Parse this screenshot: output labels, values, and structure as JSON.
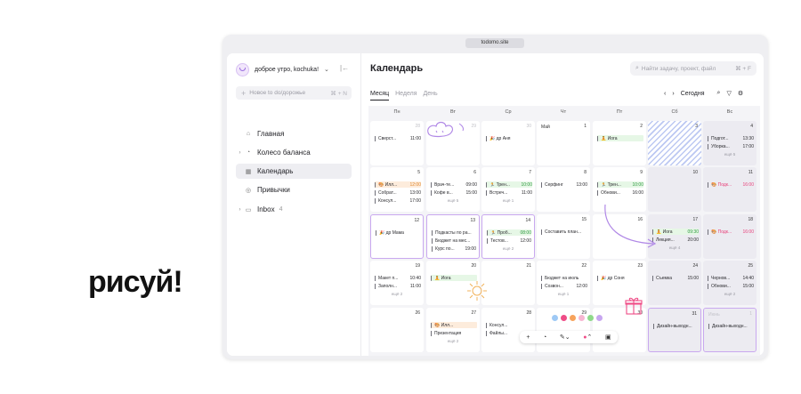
{
  "slogan": "рисуй!",
  "browser": {
    "url": "todomo.site"
  },
  "sidebar": {
    "greeting": "доброе утро, kochuka!",
    "new_task_placeholder": "Новое to do/дорожье",
    "new_task_shortcut": "⌘ + N",
    "items": [
      {
        "label": "Главная",
        "icon": "home-icon"
      },
      {
        "label": "Колесо баланса",
        "icon": "wheel-icon"
      },
      {
        "label": "Календарь",
        "icon": "calendar-icon",
        "active": true
      },
      {
        "label": "Привычки",
        "icon": "habits-icon"
      },
      {
        "label": "Inbox",
        "icon": "inbox-icon",
        "count": "4"
      }
    ]
  },
  "header": {
    "title": "Календарь",
    "search_placeholder": "Найти задачу, проект, файл",
    "search_shortcut": "⌘ + F",
    "views": [
      "Месяц",
      "Неделя",
      "День"
    ],
    "today": "Сегодня"
  },
  "weekdays": [
    "Пн",
    "Вт",
    "Ср",
    "Чт",
    "Пт",
    "Сб",
    "Вс"
  ],
  "weeks": [
    [
      {
        "day": "28",
        "dim": true,
        "events": [
          {
            "t": "Сверст...",
            "h": "11:00"
          }
        ]
      },
      {
        "day": "29",
        "dim": true,
        "events": []
      },
      {
        "day": "30",
        "dim": true,
        "events": [
          {
            "t": "🎉 др Аня",
            "h": ""
          }
        ]
      },
      {
        "day": "1",
        "month": "Май",
        "events": []
      },
      {
        "day": "2",
        "events": [
          {
            "t": "🧘 Йога",
            "h": "",
            "c": "green"
          }
        ]
      },
      {
        "day": "3",
        "hatch": true,
        "events": []
      },
      {
        "day": "4",
        "off": true,
        "events": [
          {
            "t": "Подгот...",
            "h": "13:30"
          },
          {
            "t": "Уборка...",
            "h": "17:00"
          }
        ],
        "more": "ещё 5"
      }
    ],
    [
      {
        "day": "5",
        "events": [
          {
            "t": "🎨 Илл...",
            "h": "12:00",
            "c": "orange"
          },
          {
            "t": "Собрат...",
            "h": "13:00"
          },
          {
            "t": "Консул...",
            "h": "17:00"
          }
        ]
      },
      {
        "day": "6",
        "events": [
          {
            "t": "Врач-те...",
            "h": "09:00"
          },
          {
            "t": "Кофе в...",
            "h": "15:00"
          }
        ],
        "more": "ещё 5"
      },
      {
        "day": "7",
        "events": [
          {
            "t": "🏃 Трен...",
            "h": "10:00",
            "c": "green"
          },
          {
            "t": "Встреч...",
            "h": "11:00"
          }
        ],
        "more": "ещё 1"
      },
      {
        "day": "8",
        "events": [
          {
            "t": "Серфинг",
            "h": "13:00"
          }
        ]
      },
      {
        "day": "9",
        "events": [
          {
            "t": "🏃 Трен...",
            "h": "10:00",
            "c": "green"
          },
          {
            "t": "Обнови...",
            "h": "16:00"
          }
        ]
      },
      {
        "day": "10",
        "off": true,
        "events": []
      },
      {
        "day": "11",
        "off": true,
        "events": [
          {
            "t": "🎨 Подк...",
            "h": "16:00",
            "c": "pink"
          }
        ]
      }
    ],
    [
      {
        "day": "12",
        "sel": true,
        "events": [
          {
            "t": "🎉 др Мама",
            "h": ""
          }
        ]
      },
      {
        "day": "13",
        "sel": true,
        "events": [
          {
            "t": "Подкасты по ра...",
            "h": ""
          },
          {
            "t": "Бюджет на мес...",
            "h": ""
          },
          {
            "t": "Курс по...",
            "h": "19:00"
          }
        ]
      },
      {
        "day": "14",
        "sel": true,
        "events": [
          {
            "t": "🏃 Проб...",
            "h": "08:00",
            "c": "green"
          },
          {
            "t": "Тестов...",
            "h": "12:00"
          }
        ],
        "more": "ещё 2"
      },
      {
        "day": "15",
        "events": [
          {
            "t": "Составить план...",
            "h": ""
          }
        ]
      },
      {
        "day": "16",
        "events": []
      },
      {
        "day": "17",
        "off": true,
        "events": [
          {
            "t": "🧘 Йога",
            "h": "09:30",
            "c": "green"
          },
          {
            "t": "Лекция...",
            "h": "20:00"
          }
        ],
        "more": "ещё 4"
      },
      {
        "day": "18",
        "off": true,
        "events": [
          {
            "t": "🎨 Подк...",
            "h": "16:00",
            "c": "pink"
          }
        ]
      }
    ],
    [
      {
        "day": "19",
        "events": [
          {
            "t": "Макет п...",
            "h": "10:40"
          },
          {
            "t": "Заполн...",
            "h": "11:00"
          }
        ],
        "more": "ещё 2"
      },
      {
        "day": "20",
        "events": [
          {
            "t": "🧘 Йога",
            "h": "",
            "c": "green"
          }
        ]
      },
      {
        "day": "21",
        "events": []
      },
      {
        "day": "22",
        "events": [
          {
            "t": "Бюджет на июль",
            "h": ""
          },
          {
            "t": "Созвон...",
            "h": "12:00"
          }
        ],
        "more": "ещё 1"
      },
      {
        "day": "23",
        "events": [
          {
            "t": "🎉 др Соня",
            "h": ""
          }
        ]
      },
      {
        "day": "24",
        "off": true,
        "events": [
          {
            "t": "Съемка",
            "h": "15:00"
          }
        ]
      },
      {
        "day": "25",
        "off": true,
        "events": [
          {
            "t": "Чернов...",
            "h": "14:40"
          },
          {
            "t": "Обнови...",
            "h": "15:00"
          }
        ],
        "more": "ещё 2"
      }
    ],
    [
      {
        "day": "26",
        "events": []
      },
      {
        "day": "27",
        "events": [
          {
            "t": "🎨 Илл...",
            "h": "",
            "c": "orange"
          },
          {
            "t": "Презентация",
            "h": ""
          }
        ],
        "more": "ещё 2"
      },
      {
        "day": "28",
        "events": [
          {
            "t": "Консул...",
            "h": ""
          },
          {
            "t": "Файлы...",
            "h": ""
          }
        ]
      },
      {
        "day": "29",
        "events": []
      },
      {
        "day": "30",
        "events": []
      },
      {
        "day": "31",
        "off": true,
        "sel": true,
        "events": [
          {
            "t": "Дизайн-выходн...",
            "h": ""
          }
        ]
      },
      {
        "day": "1",
        "off": true,
        "sel": true,
        "dim": true,
        "month": "Июнь",
        "events": [
          {
            "t": "Дизайн-выходн...",
            "h": ""
          }
        ]
      }
    ]
  ],
  "draw_toolbar": {
    "tools": [
      "plus-icon",
      "shape-icon",
      "pen-icon",
      "color-icon",
      "image-icon"
    ],
    "swatches": [
      "#9ec9f5",
      "#ef4d87",
      "#f7a35c",
      "#f7b6d2",
      "#8fd98a",
      "#c7a6f0"
    ]
  }
}
